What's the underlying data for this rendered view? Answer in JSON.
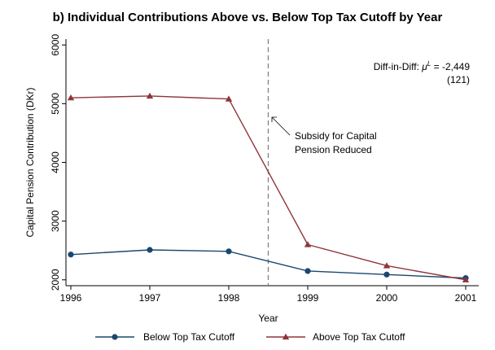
{
  "chart_data": {
    "type": "line",
    "title": "b) Individual Contributions Above vs. Below Top Tax Cutoff by Year",
    "xlabel": "Year",
    "ylabel": "Capital Pension Contribution (DKr)",
    "x": [
      1996,
      1997,
      1998,
      1999,
      2000,
      2001
    ],
    "x_ticks": [
      "1996",
      "1997",
      "1998",
      "1999",
      "2000",
      "2001"
    ],
    "y_ticks": [
      "2000",
      "3000",
      "4000",
      "5000",
      "6000"
    ],
    "xlim": [
      1996,
      2001
    ],
    "ylim": [
      1900,
      6100
    ],
    "grid": false,
    "legend_position": "bottom",
    "series": [
      {
        "name": "Below Top Tax Cutoff",
        "values": [
          2430,
          2510,
          2485,
          2150,
          2090,
          2030
        ],
        "color": "#1a476f",
        "marker": "circle"
      },
      {
        "name": "Above Top Tax Cutoff",
        "values": [
          5100,
          5130,
          5080,
          2600,
          2240,
          2000
        ],
        "color": "#90353b",
        "marker": "triangle"
      }
    ],
    "reference_line": {
      "x": 1998.5,
      "color": "#808080",
      "style": "dashed"
    },
    "annotations": {
      "did_label": "Diff-in-Diff: ",
      "did_symbol": "μ",
      "did_superscript": "L",
      "did_value": " = -2,449",
      "did_se": "(121)",
      "arrow_line1": "Subsidy for Capital",
      "arrow_line2": "Pension Reduced"
    }
  }
}
